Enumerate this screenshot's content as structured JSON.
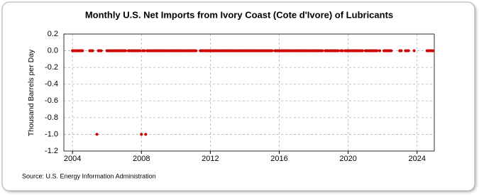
{
  "chart_data": {
    "type": "scatter",
    "title": "Monthly U.S. Net Imports from Ivory Coast (Cote d'Ivore) of Lubricants",
    "y_label": "Thousand Barrels per Day",
    "source": "Source: U.S. Energy Information Administration",
    "grid": true,
    "xlim": [
      2003.5,
      2025
    ],
    "xticks": [
      2004,
      2008,
      2012,
      2016,
      2020,
      2024
    ],
    "ylim": [
      -1.2,
      0.2
    ],
    "yticks": [
      0.2,
      {
        "value": 0,
        "label": "0.0"
      },
      -0.2,
      -0.4,
      -0.6,
      -0.8,
      {
        "value": -1,
        "label": "-1.0"
      },
      -1.2
    ],
    "series": [
      {
        "name": "Net Imports",
        "color": "#cc0000",
        "x": [
          2004,
          2004.08,
          2004.17,
          2004.25,
          2004.33,
          2004.42,
          2004.5,
          2004.58,
          2005,
          2005.08,
          2005.17,
          2005.42,
          2005.5,
          2005.58,
          2005.67,
          2006,
          2006.08,
          2006.17,
          2006.25,
          2006.33,
          2006.42,
          2006.5,
          2006.58,
          2006.67,
          2006.75,
          2006.83,
          2006.92,
          2007,
          2007.08,
          2007.25,
          2007.33,
          2007.42,
          2007.5,
          2007.58,
          2007.67,
          2007.75,
          2007.83,
          2007.92,
          2008,
          2008.08,
          2008.17,
          2008.25,
          2008.33,
          2008.42,
          2008.5,
          2008.58,
          2008.67,
          2008.75,
          2008.83,
          2008.92,
          2009,
          2009.08,
          2009.17,
          2009.25,
          2009.33,
          2009.42,
          2009.5,
          2009.58,
          2009.67,
          2009.75,
          2009.83,
          2009.92,
          2010,
          2010.08,
          2010.17,
          2010.25,
          2010.33,
          2010.42,
          2010.5,
          2010.58,
          2010.67,
          2010.75,
          2010.83,
          2010.92,
          2011,
          2011.08,
          2011.17,
          2011.42,
          2011.5,
          2011.58,
          2011.67,
          2011.75,
          2011.83,
          2011.92,
          2012,
          2012.08,
          2012.17,
          2012.25,
          2012.33,
          2012.42,
          2012.5,
          2012.58,
          2012.67,
          2012.75,
          2012.83,
          2012.92,
          2013,
          2013.08,
          2013.17,
          2013.25,
          2013.33,
          2013.42,
          2013.5,
          2013.58,
          2013.67,
          2013.75,
          2013.83,
          2013.92,
          2014,
          2014.08,
          2014.17,
          2014.25,
          2014.33,
          2014.42,
          2014.5,
          2014.58,
          2014.67,
          2014.75,
          2014.83,
          2014.92,
          2015,
          2015.08,
          2015.17,
          2015.25,
          2015.33,
          2015.42,
          2015.5,
          2015.58,
          2015.75,
          2015.83,
          2015.92,
          2016,
          2016.08,
          2016.17,
          2016.25,
          2016.33,
          2016.42,
          2016.5,
          2016.58,
          2016.67,
          2016.75,
          2016.83,
          2016.92,
          2017,
          2017.08,
          2017.17,
          2017.25,
          2017.33,
          2017.42,
          2017.5,
          2017.58,
          2017.67,
          2017.75,
          2017.83,
          2017.92,
          2018,
          2018.08,
          2018.17,
          2018.25,
          2018.33,
          2018.42,
          2018.5,
          2018.67,
          2018.75,
          2018.83,
          2018.92,
          2019,
          2019.08,
          2019.17,
          2019.25,
          2019.33,
          2019.42,
          2019.58,
          2019.67,
          2019.83,
          2019.92,
          2020,
          2020.08,
          2020.17,
          2020.25,
          2020.33,
          2020.42,
          2020.5,
          2020.58,
          2020.67,
          2020.75,
          2020.83,
          2021,
          2021.08,
          2021.17,
          2021.25,
          2021.33,
          2021.42,
          2021.5,
          2021.58,
          2021.67,
          2021.83,
          2022.08,
          2022.17,
          2022.25,
          2022.33,
          2022.42,
          2022.5,
          2023,
          2023.08,
          2023.33,
          2023.42,
          2023.5,
          2023.83,
          2024.58,
          2024.67,
          2024.75,
          2024.83,
          2024.92
        ],
        "values": [
          0,
          0,
          0,
          0,
          0,
          0,
          0,
          0,
          0,
          0,
          0,
          -1,
          0,
          0,
          0,
          0,
          0,
          0,
          0,
          0,
          0,
          0,
          0,
          0,
          0,
          0,
          0,
          0,
          0,
          0,
          0,
          0,
          0,
          0,
          0,
          0,
          0,
          0,
          -1,
          0,
          0,
          -1,
          0,
          0,
          0,
          0,
          0,
          0,
          0,
          0,
          0,
          0,
          0,
          0,
          0,
          0,
          0,
          0,
          0,
          0,
          0,
          0,
          0,
          0,
          0,
          0,
          0,
          0,
          0,
          0,
          0,
          0,
          0,
          0,
          0,
          0,
          0,
          0,
          0,
          0,
          0,
          0,
          0,
          0,
          0,
          0,
          0,
          0,
          0,
          0,
          0,
          0,
          0,
          0,
          0,
          0,
          0,
          0,
          0,
          0,
          0,
          0,
          0,
          0,
          0,
          0,
          0,
          0,
          0,
          0,
          0,
          0,
          0,
          0,
          0,
          0,
          0,
          0,
          0,
          0,
          0,
          0,
          0,
          0,
          0,
          0,
          0,
          0,
          0,
          0,
          0,
          0,
          0,
          0,
          0,
          0,
          0,
          0,
          0,
          0,
          0,
          0,
          0,
          0,
          0,
          0,
          0,
          0,
          0,
          0,
          0,
          0,
          0,
          0,
          0,
          0,
          0,
          0,
          0,
          0,
          0,
          0,
          0,
          0,
          0,
          0,
          0,
          0,
          0,
          0,
          0,
          0,
          0,
          0,
          0,
          0,
          0,
          0,
          0,
          0,
          0,
          0,
          0,
          0,
          0,
          0,
          0,
          0,
          0,
          0,
          0,
          0,
          0,
          0,
          0,
          0,
          0,
          0,
          0,
          0,
          0,
          0,
          0,
          0,
          0,
          0,
          0,
          0,
          0,
          0,
          0,
          0,
          0,
          0
        ]
      }
    ]
  }
}
